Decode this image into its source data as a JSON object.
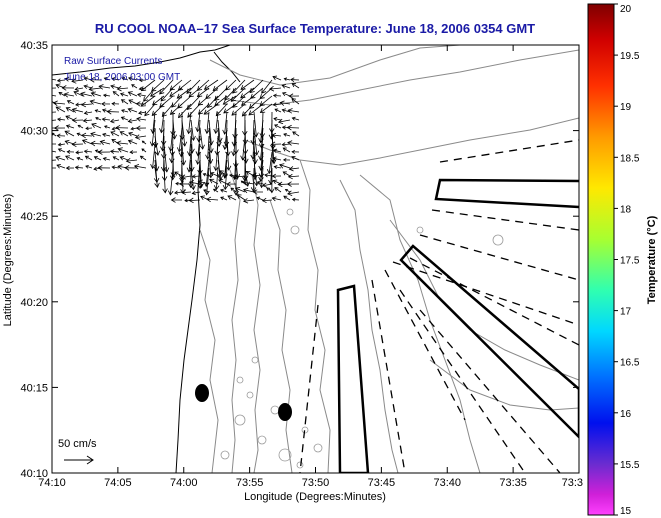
{
  "map": {
    "title": "RU COOL  NOAA–17  Sea Surface Temperature:  June 18, 2006 0354 GMT",
    "legend_line1": "Raw Surface Currents",
    "legend_line2": "June 18, 2006 03:00 GMT",
    "scale_label": "50 cm/s",
    "xlabel": "Longitude (Degrees:Minutes)",
    "ylabel": "Latitude (Degrees:Minutes)",
    "x_ticks": [
      "74:10",
      "74:05",
      "74:00",
      "73:55",
      "73:50",
      "73:45",
      "73:40",
      "73:35",
      "73:3"
    ],
    "y_ticks": [
      "40:35",
      "40:30",
      "40:25",
      "40:20",
      "40:15",
      "40:10"
    ]
  },
  "colorbar": {
    "label": "Temperature (°C)",
    "ticks": [
      "20",
      "19.5",
      "19",
      "18.5",
      "18",
      "17.5",
      "17",
      "16.5",
      "16",
      "15.5",
      "15"
    ]
  }
}
